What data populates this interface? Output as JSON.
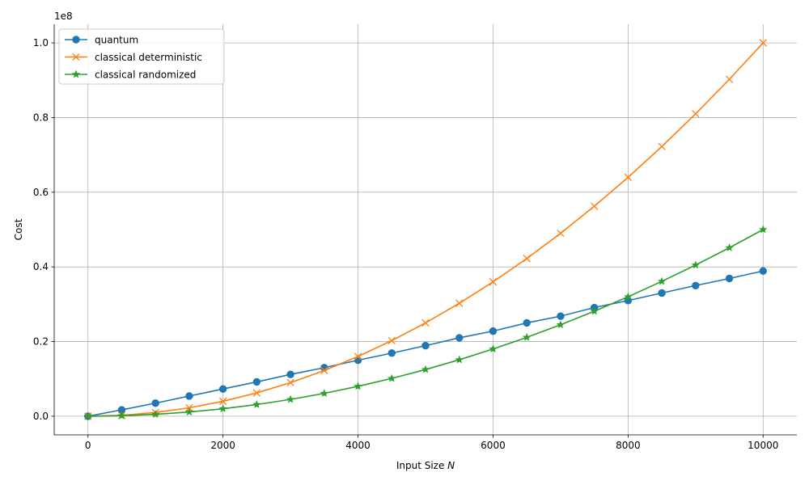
{
  "chart_data": {
    "type": "line",
    "title": "",
    "xlabel": "Input Size ",
    "xlabel_var": "N",
    "ylabel": "Cost",
    "y_offset_label": "1e8",
    "xlim": [
      -500,
      10500
    ],
    "ylim": [
      -5000000,
      105000000
    ],
    "xticks": [
      0,
      2000,
      4000,
      6000,
      8000,
      10000
    ],
    "xtick_labels": [
      "0",
      "2000",
      "4000",
      "6000",
      "8000",
      "10000"
    ],
    "yticks": [
      0,
      20000000,
      40000000,
      60000000,
      80000000,
      100000000
    ],
    "ytick_labels": [
      "0.0",
      "0.2",
      "0.4",
      "0.6",
      "0.8",
      "1.0"
    ],
    "grid": true,
    "legend_position": "top-left",
    "x": [
      0,
      500,
      1000,
      1500,
      2000,
      2500,
      3000,
      3500,
      4000,
      4500,
      5000,
      5500,
      6000,
      6500,
      7000,
      7500,
      8000,
      8500,
      9000,
      9500,
      10000
    ],
    "series": [
      {
        "name": "quantum",
        "color": "#1f77b4",
        "marker": "circle",
        "values": [
          0,
          1700000,
          3500000,
          5400000,
          7300000,
          9200000,
          11200000,
          13000000,
          15000000,
          16900000,
          18900000,
          21000000,
          22800000,
          25000000,
          26800000,
          29100000,
          31000000,
          33000000,
          35000000,
          36900000,
          38900000
        ]
      },
      {
        "name": "classical deterministic",
        "color": "#ff7f0e",
        "marker": "x",
        "values": [
          0,
          250000,
          1000000,
          2250000,
          4000000,
          6250000,
          9000000,
          12250000,
          16000000,
          20250000,
          25000000,
          30250000,
          36000000,
          42250000,
          49000000,
          56250000,
          64000000,
          72250000,
          81000000,
          90250000,
          100000000
        ]
      },
      {
        "name": "classical randomized",
        "color": "#2ca02c",
        "marker": "star",
        "values": [
          0,
          125000,
          500000,
          1125000,
          2000000,
          3125000,
          4500000,
          6125000,
          8000000,
          10125000,
          12500000,
          15125000,
          18000000,
          21125000,
          24500000,
          28125000,
          32000000,
          36125000,
          40500000,
          45125000,
          50000000
        ]
      }
    ]
  }
}
